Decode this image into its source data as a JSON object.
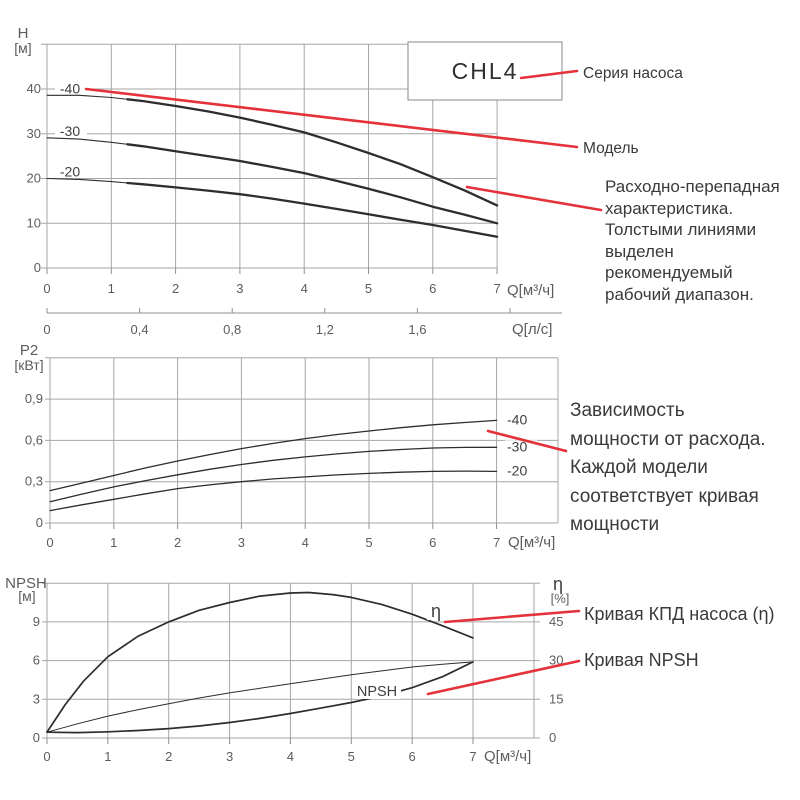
{
  "colors": {
    "accent_red": "#e5313a",
    "curve": "#2d2d2d",
    "grid": "#a6a6a6",
    "frame": "#8f8f8f",
    "tick_text": "#5c5c5c",
    "text": "#3a3a3a"
  },
  "series_box": {
    "label": "CHL4"
  },
  "annotations": {
    "series": "Серия насоса",
    "model": "Модель",
    "flow_head": [
      "Расходно-перепадная",
      "характеристика.",
      "Толстыми линиями",
      "выделен",
      "рекомендуемый",
      "рабочий диапазон."
    ],
    "power": [
      "Зависимость",
      "мощности от расхода.",
      "Каждой модели",
      "соответствует кривая",
      "мощности"
    ],
    "efficiency": "Кривая КПД насоса (η)",
    "npsh": "Кривая NPSH"
  },
  "chart_data": [
    {
      "type": "line",
      "name": "head-vs-flow",
      "y_title": [
        "H",
        "[м]"
      ],
      "x_title": "Q[м³/ч]",
      "x2_title": "Q[л/с]",
      "xlim": [
        0,
        7
      ],
      "ylim": [
        0,
        50
      ],
      "yticks": [
        0,
        10,
        20,
        30,
        40
      ],
      "xticks": [
        0,
        1,
        2,
        3,
        4,
        5,
        6,
        7
      ],
      "x2ticks": [
        {
          "v": 0,
          "label": "0"
        },
        {
          "v": 0.4,
          "label": "0,4"
        },
        {
          "v": 0.8,
          "label": "0,8"
        },
        {
          "v": 1.2,
          "label": "1,2"
        },
        {
          "v": 1.6,
          "label": "1,6"
        },
        {
          "v": 2.0,
          "label": ""
        }
      ],
      "series": [
        {
          "name": "-40",
          "points": [
            [
              0,
              38.6
            ],
            [
              0.5,
              38.6
            ],
            [
              1,
              38.1
            ],
            [
              1.5,
              37.3
            ],
            [
              2,
              36.2
            ],
            [
              2.5,
              35.0
            ],
            [
              3,
              33.6
            ],
            [
              3.5,
              32.0
            ],
            [
              4,
              30.3
            ],
            [
              4.5,
              28.1
            ],
            [
              5,
              25.7
            ],
            [
              5.5,
              23.2
            ],
            [
              6,
              20.3
            ],
            [
              6.5,
              17.3
            ],
            [
              7,
              14.0
            ]
          ]
        },
        {
          "name": "-30",
          "points": [
            [
              0,
              29.1
            ],
            [
              0.5,
              28.8
            ],
            [
              1,
              28.1
            ],
            [
              1.5,
              27.2
            ],
            [
              2,
              26.1
            ],
            [
              2.5,
              25.0
            ],
            [
              3,
              23.9
            ],
            [
              3.5,
              22.6
            ],
            [
              4,
              21.2
            ],
            [
              4.5,
              19.5
            ],
            [
              5,
              17.7
            ],
            [
              5.5,
              15.8
            ],
            [
              6,
              13.7
            ],
            [
              6.5,
              11.9
            ],
            [
              7,
              10.0
            ]
          ]
        },
        {
          "name": "-20",
          "points": [
            [
              0,
              20.0
            ],
            [
              0.5,
              19.8
            ],
            [
              1,
              19.3
            ],
            [
              1.5,
              18.7
            ],
            [
              2,
              18.0
            ],
            [
              2.5,
              17.3
            ],
            [
              3,
              16.5
            ],
            [
              3.5,
              15.5
            ],
            [
              4,
              14.4
            ],
            [
              4.5,
              13.2
            ],
            [
              5,
              12.0
            ],
            [
              5.5,
              10.8
            ],
            [
              6,
              9.6
            ],
            [
              6.5,
              8.3
            ],
            [
              7,
              7.0
            ]
          ]
        }
      ]
    },
    {
      "type": "line",
      "name": "power-vs-flow",
      "y_title": [
        "P2",
        "[кВт]"
      ],
      "x_title": "Q[м³/ч]",
      "xlim": [
        0,
        7
      ],
      "ylim": [
        0,
        1.2
      ],
      "yticks": [
        {
          "v": 0,
          "label": "0"
        },
        {
          "v": 0.3,
          "label": "0,3"
        },
        {
          "v": 0.6,
          "label": "0,6"
        },
        {
          "v": 0.9,
          "label": "0,9"
        }
      ],
      "xticks": [
        0,
        1,
        2,
        3,
        4,
        5,
        6,
        7
      ],
      "series": [
        {
          "name": "-40",
          "points": [
            [
              0,
              0.235
            ],
            [
              0.5,
              0.29
            ],
            [
              1,
              0.345
            ],
            [
              1.5,
              0.4
            ],
            [
              2,
              0.45
            ],
            [
              2.5,
              0.497
            ],
            [
              3,
              0.54
            ],
            [
              3.5,
              0.578
            ],
            [
              4,
              0.613
            ],
            [
              4.5,
              0.643
            ],
            [
              5,
              0.668
            ],
            [
              5.5,
              0.692
            ],
            [
              6,
              0.713
            ],
            [
              6.5,
              0.73
            ],
            [
              7,
              0.745
            ]
          ]
        },
        {
          "name": "-30",
          "points": [
            [
              0,
              0.155
            ],
            [
              0.5,
              0.21
            ],
            [
              1,
              0.262
            ],
            [
              1.5,
              0.308
            ],
            [
              2,
              0.35
            ],
            [
              2.5,
              0.39
            ],
            [
              3,
              0.425
            ],
            [
              3.5,
              0.455
            ],
            [
              4,
              0.48
            ],
            [
              4.5,
              0.502
            ],
            [
              5,
              0.52
            ],
            [
              5.5,
              0.534
            ],
            [
              6,
              0.545
            ],
            [
              6.5,
              0.549
            ],
            [
              7,
              0.55
            ]
          ]
        },
        {
          "name": "-20",
          "points": [
            [
              0,
              0.09
            ],
            [
              0.5,
              0.132
            ],
            [
              1,
              0.172
            ],
            [
              1.5,
              0.212
            ],
            [
              2,
              0.25
            ],
            [
              2.5,
              0.277
            ],
            [
              3,
              0.3
            ],
            [
              3.5,
              0.32
            ],
            [
              4,
              0.335
            ],
            [
              4.5,
              0.349
            ],
            [
              5,
              0.36
            ],
            [
              5.5,
              0.369
            ],
            [
              6,
              0.375
            ],
            [
              6.5,
              0.377
            ],
            [
              7,
              0.375
            ]
          ]
        }
      ]
    },
    {
      "type": "line",
      "name": "npsh-and-efficiency-vs-flow",
      "y_title": [
        "NPSH",
        "[м]"
      ],
      "y2_title": [
        "η",
        "[%]"
      ],
      "x_title": "Q[м³/ч]",
      "xlim": [
        0,
        7
      ],
      "ylim_left_m": [
        0,
        12
      ],
      "ylim_right_pct": [
        0,
        60
      ],
      "yticks_left": [
        0,
        3,
        6,
        9
      ],
      "yticks_right": [
        0,
        15,
        30,
        45
      ],
      "xticks": [
        0,
        1,
        2,
        3,
        4,
        5,
        6,
        7
      ],
      "series": [
        {
          "name": "η",
          "unit": "%",
          "points": [
            [
              0,
              2.3
            ],
            [
              0.3,
              13
            ],
            [
              0.6,
              22
            ],
            [
              1,
              31.5
            ],
            [
              1.5,
              39.5
            ],
            [
              2,
              45
            ],
            [
              2.5,
              49.5
            ],
            [
              3,
              52.5
            ],
            [
              3.5,
              55
            ],
            [
              4,
              56.2
            ],
            [
              4.3,
              56.4
            ],
            [
              4.7,
              55.6
            ],
            [
              5,
              54.5
            ],
            [
              5.5,
              51.8
            ],
            [
              6,
              48
            ],
            [
              6.5,
              43.5
            ],
            [
              7,
              38.8
            ]
          ]
        },
        {
          "name": "NPSH",
          "unit": "м",
          "points": [
            [
              0,
              0.45
            ],
            [
              0.5,
              0.42
            ],
            [
              1,
              0.48
            ],
            [
              1.5,
              0.58
            ],
            [
              2,
              0.73
            ],
            [
              2.5,
              0.93
            ],
            [
              3,
              1.2
            ],
            [
              3.5,
              1.52
            ],
            [
              4,
              1.9
            ],
            [
              4.5,
              2.32
            ],
            [
              5,
              2.75
            ],
            [
              5.5,
              3.25
            ],
            [
              6,
              3.9
            ],
            [
              6.5,
              4.75
            ],
            [
              7,
              5.9
            ]
          ]
        },
        {
          "name": "",
          "unit": "м",
          "points": [
            [
              0,
              0.45
            ],
            [
              0.5,
              1.1
            ],
            [
              1,
              1.7
            ],
            [
              1.5,
              2.2
            ],
            [
              2,
              2.65
            ],
            [
              2.5,
              3.1
            ],
            [
              3,
              3.5
            ],
            [
              3.5,
              3.85
            ],
            [
              4,
              4.2
            ],
            [
              4.5,
              4.55
            ],
            [
              5,
              4.9
            ],
            [
              5.5,
              5.2
            ],
            [
              6,
              5.5
            ],
            [
              6.5,
              5.72
            ],
            [
              7,
              5.9
            ]
          ]
        }
      ]
    }
  ]
}
